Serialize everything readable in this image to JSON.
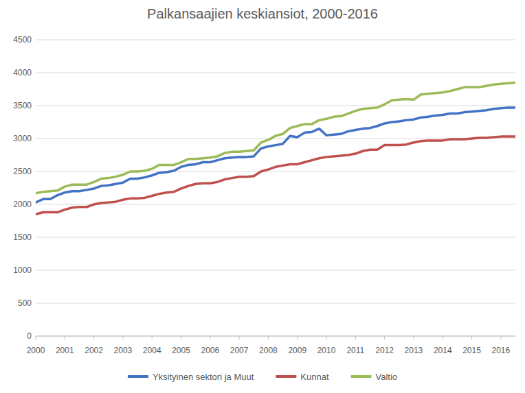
{
  "chart_data": {
    "type": "line",
    "title": "Palkansaajien keskiansiot, 2000-2016",
    "x": [
      2000,
      2000.25,
      2000.5,
      2000.75,
      2001,
      2001.25,
      2001.5,
      2001.75,
      2002,
      2002.25,
      2002.5,
      2002.75,
      2003,
      2003.25,
      2003.5,
      2003.75,
      2004,
      2004.25,
      2004.5,
      2004.75,
      2005,
      2005.25,
      2005.5,
      2005.75,
      2006,
      2006.25,
      2006.5,
      2006.75,
      2007,
      2007.25,
      2007.5,
      2007.75,
      2008,
      2008.25,
      2008.5,
      2008.75,
      2009,
      2009.25,
      2009.5,
      2009.75,
      2010,
      2010.25,
      2010.5,
      2010.75,
      2011,
      2011.25,
      2011.5,
      2011.75,
      2012,
      2012.25,
      2012.5,
      2012.75,
      2013,
      2013.25,
      2013.5,
      2013.75,
      2014,
      2014.25,
      2014.5,
      2014.75,
      2015,
      2015.25,
      2015.5,
      2015.75,
      2016,
      2016.25,
      2016.5
    ],
    "series": [
      {
        "name": "Yksityinen sektori ja Muut",
        "color": "#4472c4",
        "values": [
          2030,
          2080,
          2080,
          2140,
          2180,
          2200,
          2200,
          2220,
          2240,
          2280,
          2290,
          2310,
          2330,
          2390,
          2390,
          2410,
          2440,
          2480,
          2490,
          2510,
          2570,
          2600,
          2610,
          2640,
          2640,
          2670,
          2700,
          2710,
          2720,
          2720,
          2730,
          2850,
          2880,
          2900,
          2920,
          3040,
          3020,
          3090,
          3100,
          3150,
          3050,
          3060,
          3070,
          3110,
          3130,
          3150,
          3160,
          3190,
          3230,
          3250,
          3260,
          3280,
          3290,
          3320,
          3330,
          3350,
          3360,
          3380,
          3380,
          3400,
          3410,
          3420,
          3430,
          3450,
          3460,
          3470,
          3470
        ]
      },
      {
        "name": "Kunnat",
        "color": "#c0504d",
        "values": [
          1850,
          1880,
          1880,
          1880,
          1920,
          1950,
          1960,
          1960,
          2000,
          2020,
          2030,
          2040,
          2070,
          2090,
          2090,
          2100,
          2130,
          2160,
          2180,
          2190,
          2240,
          2280,
          2310,
          2320,
          2320,
          2340,
          2380,
          2400,
          2420,
          2420,
          2430,
          2500,
          2530,
          2570,
          2590,
          2610,
          2610,
          2640,
          2670,
          2700,
          2720,
          2730,
          2740,
          2750,
          2770,
          2810,
          2830,
          2830,
          2900,
          2900,
          2900,
          2910,
          2940,
          2960,
          2970,
          2970,
          2970,
          2990,
          2990,
          2990,
          3000,
          3010,
          3010,
          3020,
          3030,
          3030,
          3030
        ]
      },
      {
        "name": "Valtio",
        "color": "#9bbb59",
        "values": [
          2170,
          2190,
          2200,
          2210,
          2270,
          2300,
          2300,
          2300,
          2340,
          2390,
          2400,
          2420,
          2450,
          2500,
          2500,
          2510,
          2540,
          2600,
          2600,
          2600,
          2640,
          2690,
          2690,
          2700,
          2710,
          2730,
          2780,
          2800,
          2800,
          2810,
          2820,
          2940,
          2980,
          3040,
          3070,
          3160,
          3190,
          3220,
          3220,
          3280,
          3300,
          3330,
          3340,
          3380,
          3420,
          3450,
          3460,
          3470,
          3520,
          3580,
          3590,
          3600,
          3590,
          3670,
          3680,
          3690,
          3700,
          3720,
          3750,
          3780,
          3780,
          3780,
          3800,
          3820,
          3830,
          3840,
          3850
        ]
      }
    ],
    "xlim": [
      2000,
      2016.5
    ],
    "xticks": [
      2000,
      2001,
      2002,
      2003,
      2004,
      2005,
      2006,
      2007,
      2008,
      2009,
      2010,
      2011,
      2012,
      2013,
      2014,
      2015,
      2016
    ],
    "ylim": [
      0,
      4500
    ],
    "yticks": [
      0,
      500,
      1000,
      1500,
      2000,
      2500,
      3000,
      3500,
      4000,
      4500
    ],
    "grid": true,
    "legend": "bottom"
  }
}
